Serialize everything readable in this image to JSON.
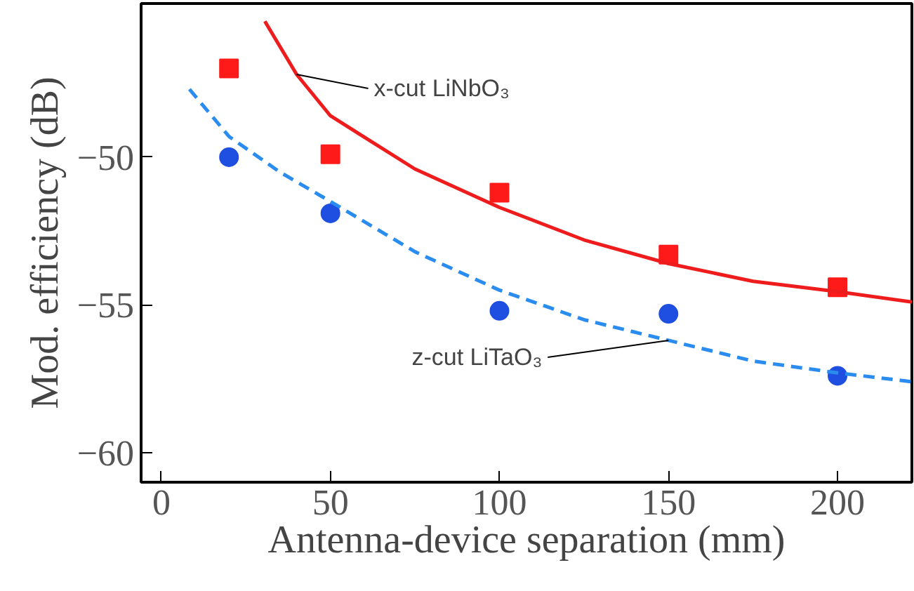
{
  "chart_data": {
    "type": "scatter",
    "xlabel": "Antenna-device separation (mm)",
    "ylabel": "Mod. efficiency (dB)",
    "xlim": [
      -6,
      222
    ],
    "ylim": [
      -61,
      -44.8
    ],
    "xticks": [
      0,
      50,
      100,
      150,
      200
    ],
    "yticks": [
      {
        "value": -50,
        "label": "−50"
      },
      {
        "value": -55,
        "label": "−55"
      },
      {
        "value": -60,
        "label": "−60"
      }
    ],
    "grid": false,
    "series": [
      {
        "marker": "square",
        "color": "#ff1a1a",
        "x": [
          20,
          50,
          100,
          150,
          200
        ],
        "values": [
          -47.0,
          -49.9,
          -51.2,
          -53.3,
          -54.4
        ]
      },
      {
        "marker": "circle",
        "color": "#1f4fe0",
        "x": [
          20,
          50,
          100,
          150,
          200
        ],
        "values": [
          -50.0,
          -51.9,
          -55.2,
          -55.3,
          -57.4
        ]
      },
      {
        "type": "line",
        "name": "x-cut LiNbO₃",
        "line_style": "solid",
        "color": "#ee1c1c",
        "x": [
          30.6,
          40,
          50,
          75,
          100,
          125,
          150,
          175,
          200,
          222
        ],
        "values": [
          -45.4,
          -47.2,
          -48.6,
          -50.4,
          -51.7,
          -52.8,
          -53.6,
          -54.2,
          -54.55,
          -54.9
        ]
      },
      {
        "type": "line",
        "name": "z-cut LiTaO₃",
        "line_style": "dashed",
        "color": "#2b8cf0",
        "x": [
          8.3,
          20,
          35,
          50,
          75,
          100,
          125,
          150,
          175,
          200,
          222
        ],
        "values": [
          -47.7,
          -49.3,
          -50.5,
          -51.5,
          -53.2,
          -54.5,
          -55.5,
          -56.2,
          -56.9,
          -57.3,
          -57.6
        ]
      }
    ]
  }
}
